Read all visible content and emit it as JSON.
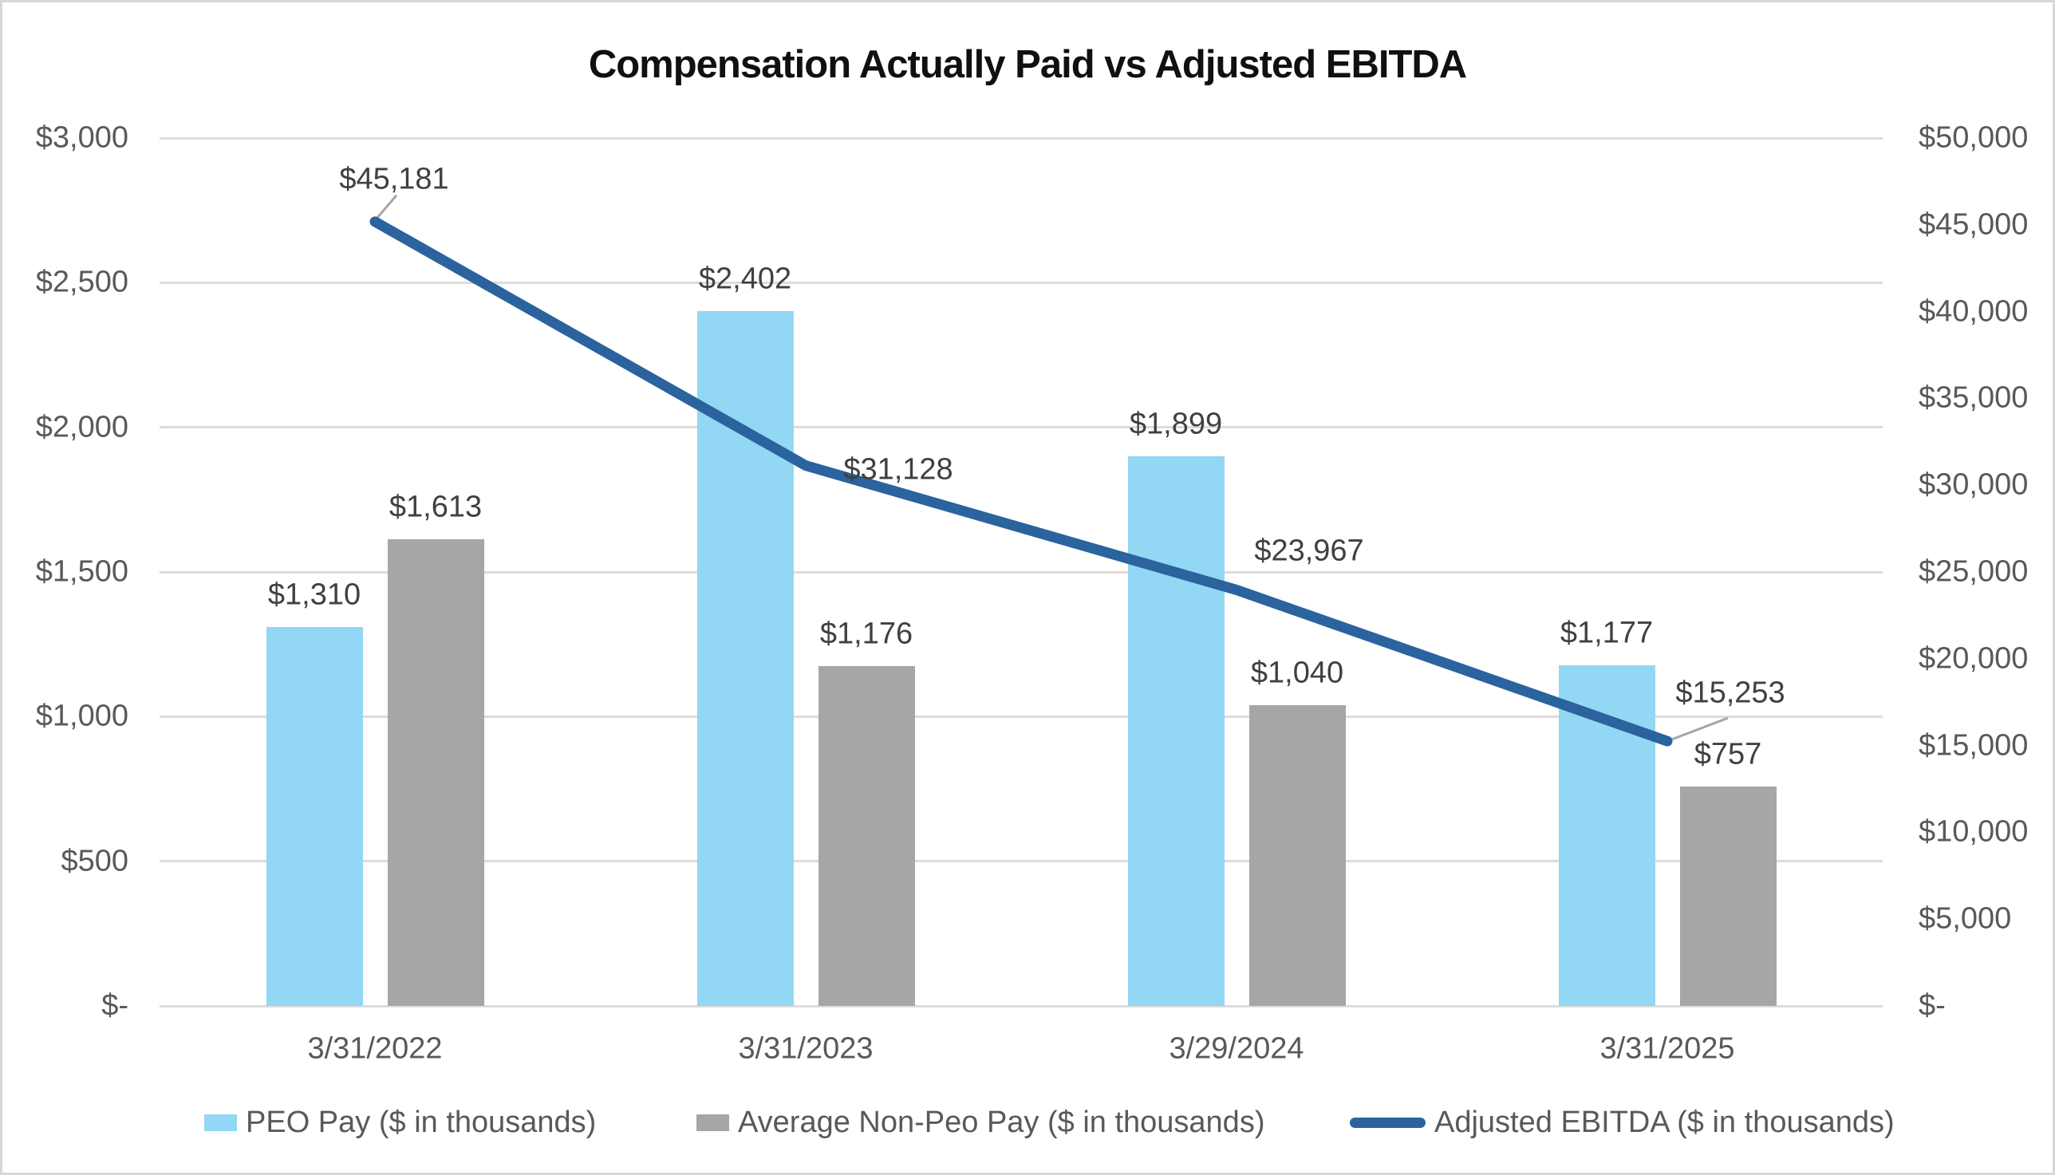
{
  "title": "Compensation Actually Paid vs Adjusted EBITDA",
  "chart_data": {
    "type": "combo-bar-line",
    "title": "Compensation Actually Paid vs Adjusted EBITDA",
    "categories": [
      "3/31/2022",
      "3/31/2023",
      "3/29/2024",
      "3/31/2025"
    ],
    "series": [
      {
        "name": "PEO Pay ($ in thousands)",
        "type": "bar",
        "axis": "left",
        "color": "#92D7F3",
        "values": [
          1310,
          2402,
          1899,
          1177
        ],
        "labels": [
          "$1,310",
          "$2,402",
          "$1,899",
          "$1,177"
        ]
      },
      {
        "name": "Average Non-Peo Pay ($ in thousands)",
        "type": "bar",
        "axis": "left",
        "color": "#A6A6A6",
        "values": [
          1613,
          1176,
          1040,
          757
        ],
        "labels": [
          "$1,613",
          "$1,176",
          "$1,040",
          "$757"
        ]
      },
      {
        "name": "Adjusted EBITDA ($ in thousands)",
        "type": "line",
        "axis": "right",
        "color": "#2A639E",
        "values": [
          45181,
          31128,
          23967,
          15253
        ],
        "labels": [
          "$45,181",
          "$31,128",
          "$23,967",
          "$15,253"
        ]
      }
    ],
    "left_axis": {
      "min": 0,
      "max": 3000,
      "step": 500,
      "tick_labels": [
        "$3,000",
        "$2,500",
        "$2,000",
        "$1,500",
        "$1,000",
        "$500",
        "$-"
      ]
    },
    "right_axis": {
      "min": 0,
      "max": 50000,
      "step": 5000,
      "tick_labels": [
        "$50,000",
        "$45,000",
        "$40,000",
        "$35,000",
        "$30,000",
        "$25,000",
        "$20,000",
        "$15,000",
        "$10,000",
        "$5,000",
        "$-"
      ]
    },
    "grid": true,
    "legend_position": "bottom"
  },
  "colors": {
    "gridline": "#DCDCDC",
    "axis_text": "#595959",
    "data_label_text": "#404040",
    "leader_line": "#A6A6A6",
    "border": "#D7D7D7",
    "background": "#FFFFFF"
  }
}
